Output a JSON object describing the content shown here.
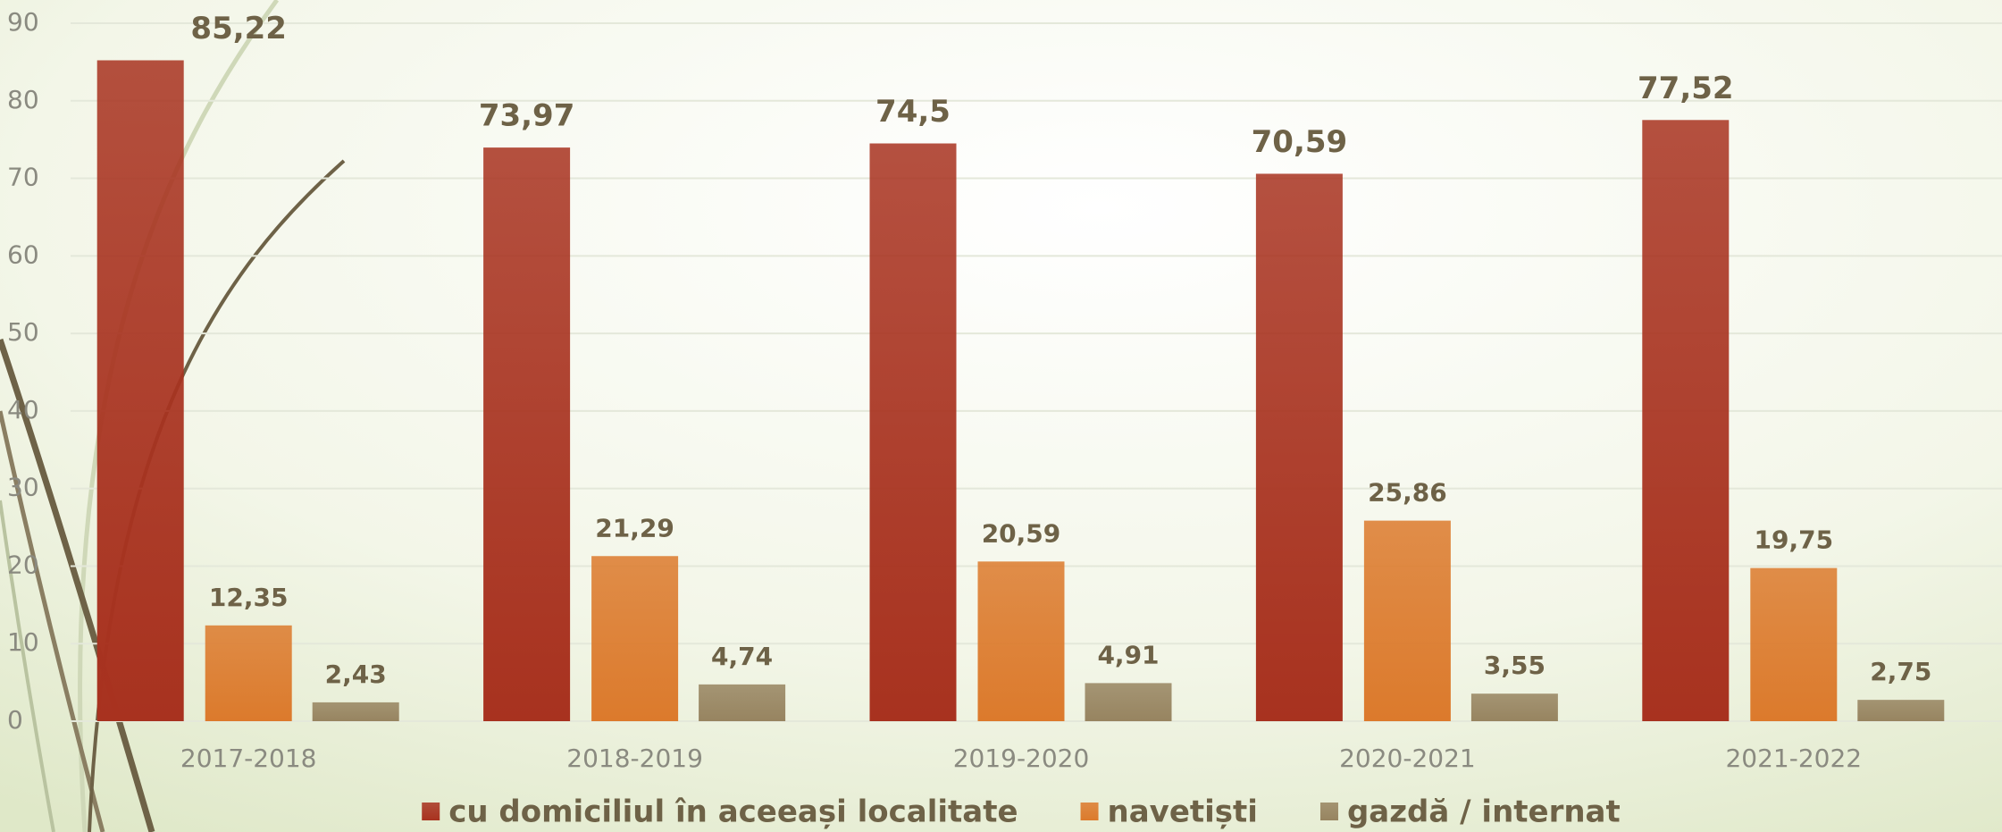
{
  "chart_data": {
    "type": "bar",
    "categories": [
      "2017-2018",
      "2018-2019",
      "2019-2020",
      "2020-2021",
      "2021-2022"
    ],
    "series": [
      {
        "name": "cu domiciliul în aceeași localitate",
        "color": "#a8321f",
        "values": [
          85.22,
          73.97,
          74.5,
          70.59,
          77.52
        ],
        "value_labels": [
          "85,22",
          "73,97",
          "74,5",
          "70,59",
          "77,52"
        ]
      },
      {
        "name": "navetiști",
        "color": "#dc7a2c",
        "values": [
          12.35,
          21.29,
          20.59,
          25.86,
          19.75
        ],
        "value_labels": [
          "12,35",
          "21,29",
          "20,59",
          "25,86",
          "19,75"
        ]
      },
      {
        "name": "gazdă / internat",
        "color": "#978460",
        "values": [
          2.43,
          4.74,
          4.91,
          3.55,
          2.75
        ],
        "value_labels": [
          "2,43",
          "4,74",
          "4,91",
          "3,55",
          "2,75"
        ]
      }
    ],
    "ylim": [
      0,
      90
    ],
    "yticks": [
      0,
      10,
      20,
      30,
      40,
      50,
      60,
      70,
      80,
      90
    ],
    "grid": true
  }
}
